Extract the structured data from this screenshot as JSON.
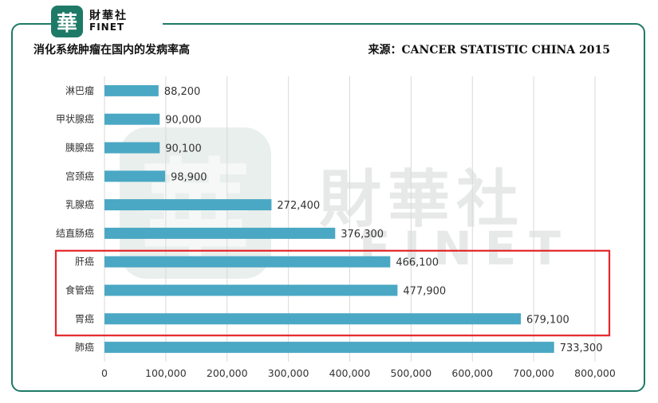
{
  "logo": {
    "mark": "華",
    "cn": "財華社",
    "en": "FINET"
  },
  "header": {
    "title": "消化系统肿瘤在国内的发病率高",
    "source": "来源：CANCER STATISTIC CHINA 2015"
  },
  "watermark": {
    "mark": "華",
    "cn": "財華社",
    "en": "FINET"
  },
  "colors": {
    "bar": "#4aa8c4",
    "frame": "#1e7a66",
    "highlight": "#e3262b",
    "grid": "#d9d9d9"
  },
  "chart_data": {
    "type": "bar",
    "orientation": "horizontal",
    "categories": [
      "淋巴瘤",
      "甲状腺癌",
      "胰腺癌",
      "宫颈癌",
      "乳腺癌",
      "结直肠癌",
      "肝癌",
      "食管癌",
      "胃癌",
      "肺癌"
    ],
    "values": [
      88200,
      90000,
      90100,
      98900,
      272400,
      376300,
      466100,
      477900,
      679100,
      733300
    ],
    "value_labels": [
      "88,200",
      "90,000",
      "90,100",
      "98,900",
      "272,400",
      "376,300",
      "466,100",
      "477,900",
      "679,100",
      "733,300"
    ],
    "xlim": [
      0,
      800000
    ],
    "xticks": [
      0,
      100000,
      200000,
      300000,
      400000,
      500000,
      600000,
      700000,
      800000
    ],
    "xtick_labels": [
      "0",
      "100,000",
      "200,000",
      "300,000",
      "400,000",
      "500,000",
      "600,000",
      "700,000",
      "800,000"
    ],
    "grid": true,
    "highlight": {
      "categories": [
        "肝癌",
        "食管癌",
        "胃癌"
      ],
      "style": "red box"
    }
  }
}
